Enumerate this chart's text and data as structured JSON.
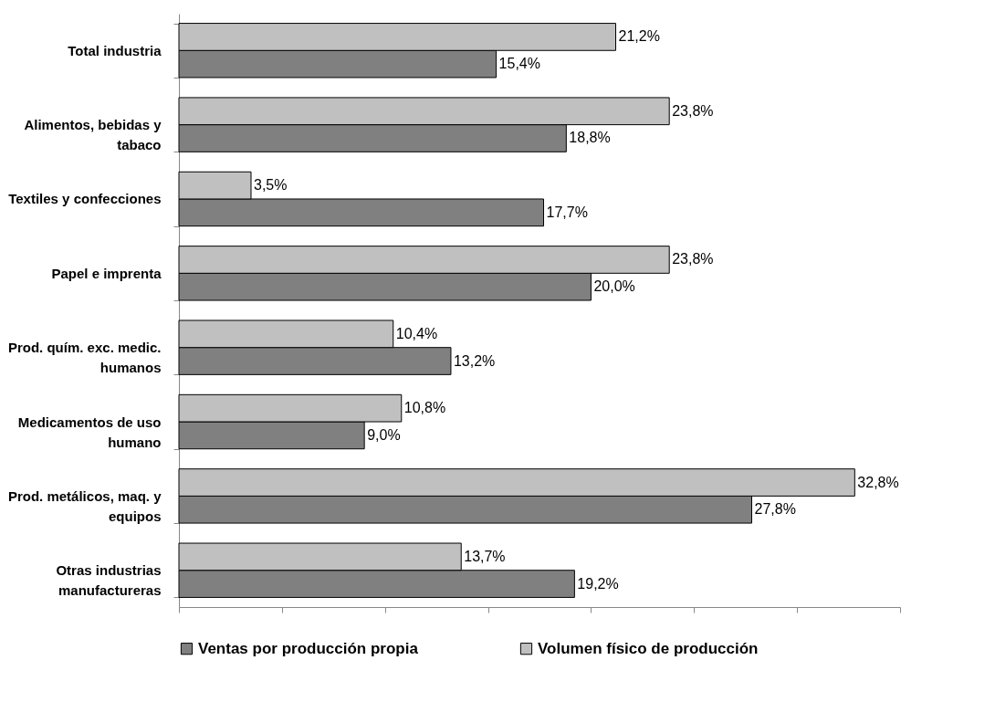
{
  "chart_data": {
    "type": "bar",
    "orientation": "horizontal",
    "categories": [
      "Total industria",
      "Alimentos, bebidas y tabaco",
      "Textiles y confecciones",
      "Papel e imprenta",
      "Prod. quím. exc. medic. humanos",
      "Medicamentos de uso humano",
      "Prod. metálicos, maq. y equipos",
      "Otras industrias manufactureras"
    ],
    "series": [
      {
        "name": "Ventas por producción propia",
        "color": "#808080",
        "values": [
          15.4,
          18.8,
          17.7,
          20.0,
          13.2,
          9.0,
          27.8,
          19.2
        ],
        "value_labels": [
          "15,4%",
          "18,8%",
          "17,7%",
          "20,0%",
          "13,2%",
          "9,0%",
          "27,8%",
          "19,2%"
        ]
      },
      {
        "name": "Volumen físico de producción",
        "color": "#c0c0c0",
        "values": [
          21.2,
          23.8,
          3.5,
          23.8,
          10.4,
          10.8,
          32.8,
          13.7
        ],
        "value_labels": [
          "21,2%",
          "23,8%",
          "3,5%",
          "23,8%",
          "10,4%",
          "10,8%",
          "32,8%",
          "13,7%"
        ]
      }
    ],
    "xlim": [
      0,
      35
    ],
    "xticks": [
      {
        "value": 0,
        "label": null
      },
      {
        "value": 5,
        "label": null
      },
      {
        "value": 10,
        "label": null
      },
      {
        "value": 15,
        "label": null
      },
      {
        "value": 20,
        "label": null
      },
      {
        "value": 25,
        "label": null
      },
      {
        "value": 30,
        "label": null
      },
      {
        "value": 35,
        "label": null
      }
    ],
    "tick_labels": "y",
    "grid": false,
    "legend": "bottom"
  }
}
